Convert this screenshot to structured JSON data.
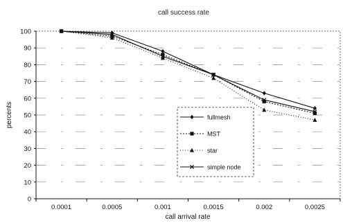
{
  "chart_data": {
    "type": "line",
    "title": "call success rate",
    "xlabel": "call arrival rate",
    "ylabel": "percents",
    "categories": [
      "0.0001",
      "0.0005",
      "0.001",
      "0.0015",
      "0.002",
      "0.0025"
    ],
    "ylim": [
      0,
      100
    ],
    "yticks": [
      0,
      10,
      20,
      30,
      40,
      50,
      60,
      70,
      80,
      90,
      100
    ],
    "ytick_labels": [
      "0",
      "10",
      "20",
      "30",
      "40",
      "50",
      "60",
      "70",
      "80",
      "90",
      "100"
    ],
    "grid": true,
    "legend_position": "lower-right (inside plot)",
    "series": [
      {
        "name": "fullmesh",
        "values": [
          100,
          99,
          88,
          74,
          63,
          54
        ],
        "marker": "diamond",
        "dash": "none"
      },
      {
        "name": "MST",
        "values": [
          100,
          97,
          86,
          74,
          58,
          51
        ],
        "marker": "square",
        "dash": "2,2"
      },
      {
        "name": "star",
        "values": [
          100,
          96,
          84,
          72,
          53,
          47
        ],
        "marker": "triangle",
        "dash": "1,2.5"
      },
      {
        "name": "simple node",
        "values": [
          100,
          98,
          85,
          74,
          59,
          52
        ],
        "marker": "x",
        "dash": "none"
      }
    ]
  }
}
